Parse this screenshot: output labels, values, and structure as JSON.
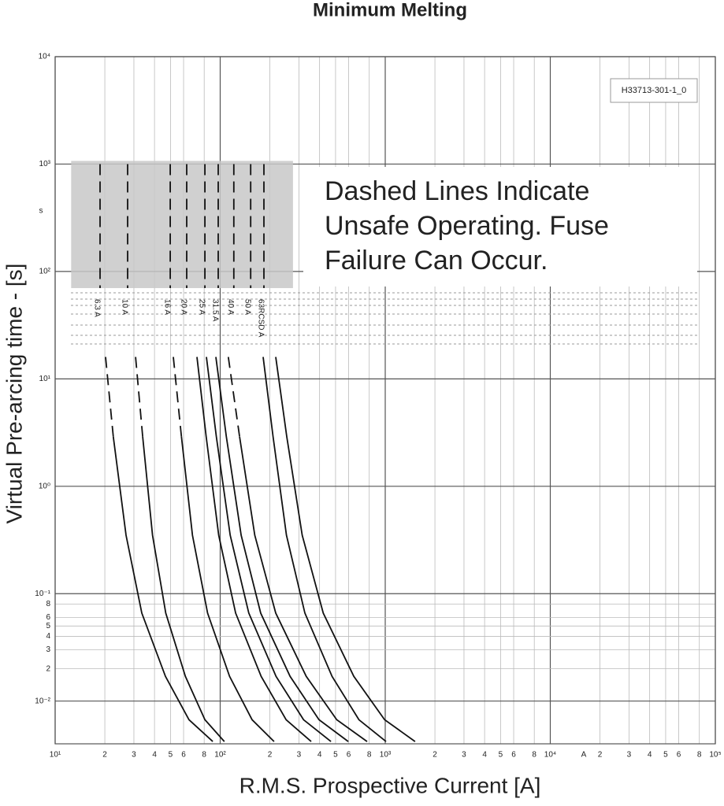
{
  "chart_data": {
    "type": "line",
    "title": "Minimum Melting",
    "x_label": "R.M.S. Prospective Current [A]",
    "y_label": "Virtual Pre-arcing time - [s]",
    "x_unit": "A",
    "y_unit": "s",
    "reference": "H33713-301-1_0",
    "annotation": [
      "Dashed Lines Indicate",
      "Unsafe Operating. Fuse",
      "Failure Can Occur."
    ],
    "log_x": true,
    "log_y": true,
    "grid": true,
    "xlim": [
      10,
      100000
    ],
    "ylim": [
      0.004,
      10000
    ],
    "xticks": [
      {
        "value": 10,
        "label": "10¹"
      },
      {
        "value": 20,
        "label": "2"
      },
      {
        "value": 30,
        "label": "3"
      },
      {
        "value": 40,
        "label": "4"
      },
      {
        "value": 50,
        "label": "5"
      },
      {
        "value": 60,
        "label": "6"
      },
      {
        "value": 80,
        "label": "8"
      },
      {
        "value": 100,
        "label": "10²"
      },
      {
        "value": 200,
        "label": "2"
      },
      {
        "value": 300,
        "label": "3"
      },
      {
        "value": 400,
        "label": "4"
      },
      {
        "value": 500,
        "label": "5"
      },
      {
        "value": 600,
        "label": "6"
      },
      {
        "value": 800,
        "label": "8"
      },
      {
        "value": 1000,
        "label": "10³"
      },
      {
        "value": 2000,
        "label": "2"
      },
      {
        "value": 3000,
        "label": "3"
      },
      {
        "value": 4000,
        "label": "4"
      },
      {
        "value": 5000,
        "label": "5"
      },
      {
        "value": 6000,
        "label": "6"
      },
      {
        "value": 8000,
        "label": "8"
      },
      {
        "value": 10000,
        "label": "10⁴"
      },
      {
        "value": 20000,
        "label": "2"
      },
      {
        "value": 30000,
        "label": "3"
      },
      {
        "value": 40000,
        "label": "4"
      },
      {
        "value": 50000,
        "label": "5"
      },
      {
        "value": 60000,
        "label": "6"
      },
      {
        "value": 80000,
        "label": "8"
      },
      {
        "value": 100000,
        "label": "10⁵"
      }
    ],
    "yticks": [
      {
        "value": 10000,
        "label": "10⁴"
      },
      {
        "value": 1000,
        "label": "10³"
      },
      {
        "value": 100,
        "label": "10²"
      },
      {
        "value": 10,
        "label": "10¹"
      },
      {
        "value": 1,
        "label": "10⁰"
      },
      {
        "value": 0.1,
        "label": "10⁻¹"
      },
      {
        "value": 0.08,
        "label": "8"
      },
      {
        "value": 0.06,
        "label": "6"
      },
      {
        "value": 0.05,
        "label": "5"
      },
      {
        "value": 0.04,
        "label": "4"
      },
      {
        "value": 0.03,
        "label": "3"
      },
      {
        "value": 0.02,
        "label": "2"
      },
      {
        "value": 0.01,
        "label": "10⁻²"
      }
    ],
    "color": "#111111",
    "unsafe_color": "#c8c8c8",
    "unsafe_region": {
      "x": [
        12.5,
        276
      ],
      "y": [
        70,
        1070
      ]
    },
    "series": [
      {
        "name": "6.3 A",
        "dashed_x": [
          18.7,
          18.7,
          null,
          20.2,
          22.5
        ],
        "dashed_values": [
          1000,
          70,
          null,
          16,
          2.9
        ],
        "x": [
          22.5,
          26.9,
          33.5,
          46.6,
          64.7,
          90.2
        ],
        "values": [
          2.9,
          0.35,
          0.066,
          0.017,
          0.0067,
          0.0042
        ]
      },
      {
        "name": "10 A",
        "dashed_x": [
          27.5,
          27.5,
          null,
          30.7,
          33.9
        ],
        "dashed_values": [
          1000,
          70,
          null,
          16,
          2.9
        ],
        "x": [
          33.9,
          38.9,
          46.8,
          61.5,
          80.8,
          106
        ],
        "values": [
          2.9,
          0.35,
          0.066,
          0.017,
          0.0067,
          0.0042
        ]
      },
      {
        "name": "16 A",
        "dashed_x": [
          49.8,
          49.8,
          null,
          52.0,
          58.2
        ],
        "dashed_values": [
          1000,
          70,
          null,
          16,
          2.9
        ],
        "x": [
          58.2,
          67.9,
          83.9,
          114,
          156,
          212
        ],
        "values": [
          2.9,
          0.35,
          0.066,
          0.017,
          0.0067,
          0.0042
        ]
      },
      {
        "name": "20 A",
        "dashed_x": [
          62.7,
          62.7
        ],
        "dashed_values": [
          1000,
          70
        ],
        "x": [
          72.3,
          82.2,
          97.9,
          124,
          177,
          251,
          356
        ],
        "values": [
          16,
          2.9,
          0.35,
          0.066,
          0.017,
          0.0067,
          0.0042
        ]
      },
      {
        "name": "25 A",
        "dashed_x": [
          80.8,
          80.8
        ],
        "dashed_values": [
          1000,
          70
        ],
        "x": [
          82.5,
          94.8,
          115,
          149,
          218,
          320,
          469
        ],
        "values": [
          16,
          2.9,
          0.35,
          0.066,
          0.017,
          0.0067,
          0.0042
        ]
      },
      {
        "name": "31.5 A",
        "dashed_x": [
          97.3,
          97.3
        ],
        "dashed_values": [
          1000,
          70
        ],
        "x": [
          94.1,
          109,
          134,
          176,
          265,
          397,
          597
        ],
        "values": [
          16,
          2.9,
          0.35,
          0.066,
          0.017,
          0.0067,
          0.0042
        ]
      },
      {
        "name": "40 A",
        "dashed_x": [
          121,
          121,
          null,
          112,
          131
        ],
        "dashed_values": [
          1000,
          70,
          null,
          16,
          2.9
        ],
        "x": [
          131,
          162,
          217,
          332,
          508,
          777
        ],
        "values": [
          2.9,
          0.35,
          0.066,
          0.017,
          0.0067,
          0.0042
        ]
      },
      {
        "name": "50 A",
        "dashed_x": [
          153,
          153
        ],
        "dashed_values": [
          1000,
          70
        ],
        "x": [
          182,
          209,
          252,
          326,
          476,
          693,
          1011
        ],
        "values": [
          16,
          2.9,
          0.35,
          0.066,
          0.017,
          0.0067,
          0.0042
        ]
      },
      {
        "name": "63RCSD A",
        "dashed_x": [
          184,
          184
        ],
        "dashed_values": [
          1000,
          70
        ],
        "x": [
          217,
          253,
          314,
          421,
          645,
          991,
          1517
        ],
        "values": [
          16,
          2.9,
          0.35,
          0.066,
          0.017,
          0.0067,
          0.0042
        ]
      }
    ]
  }
}
